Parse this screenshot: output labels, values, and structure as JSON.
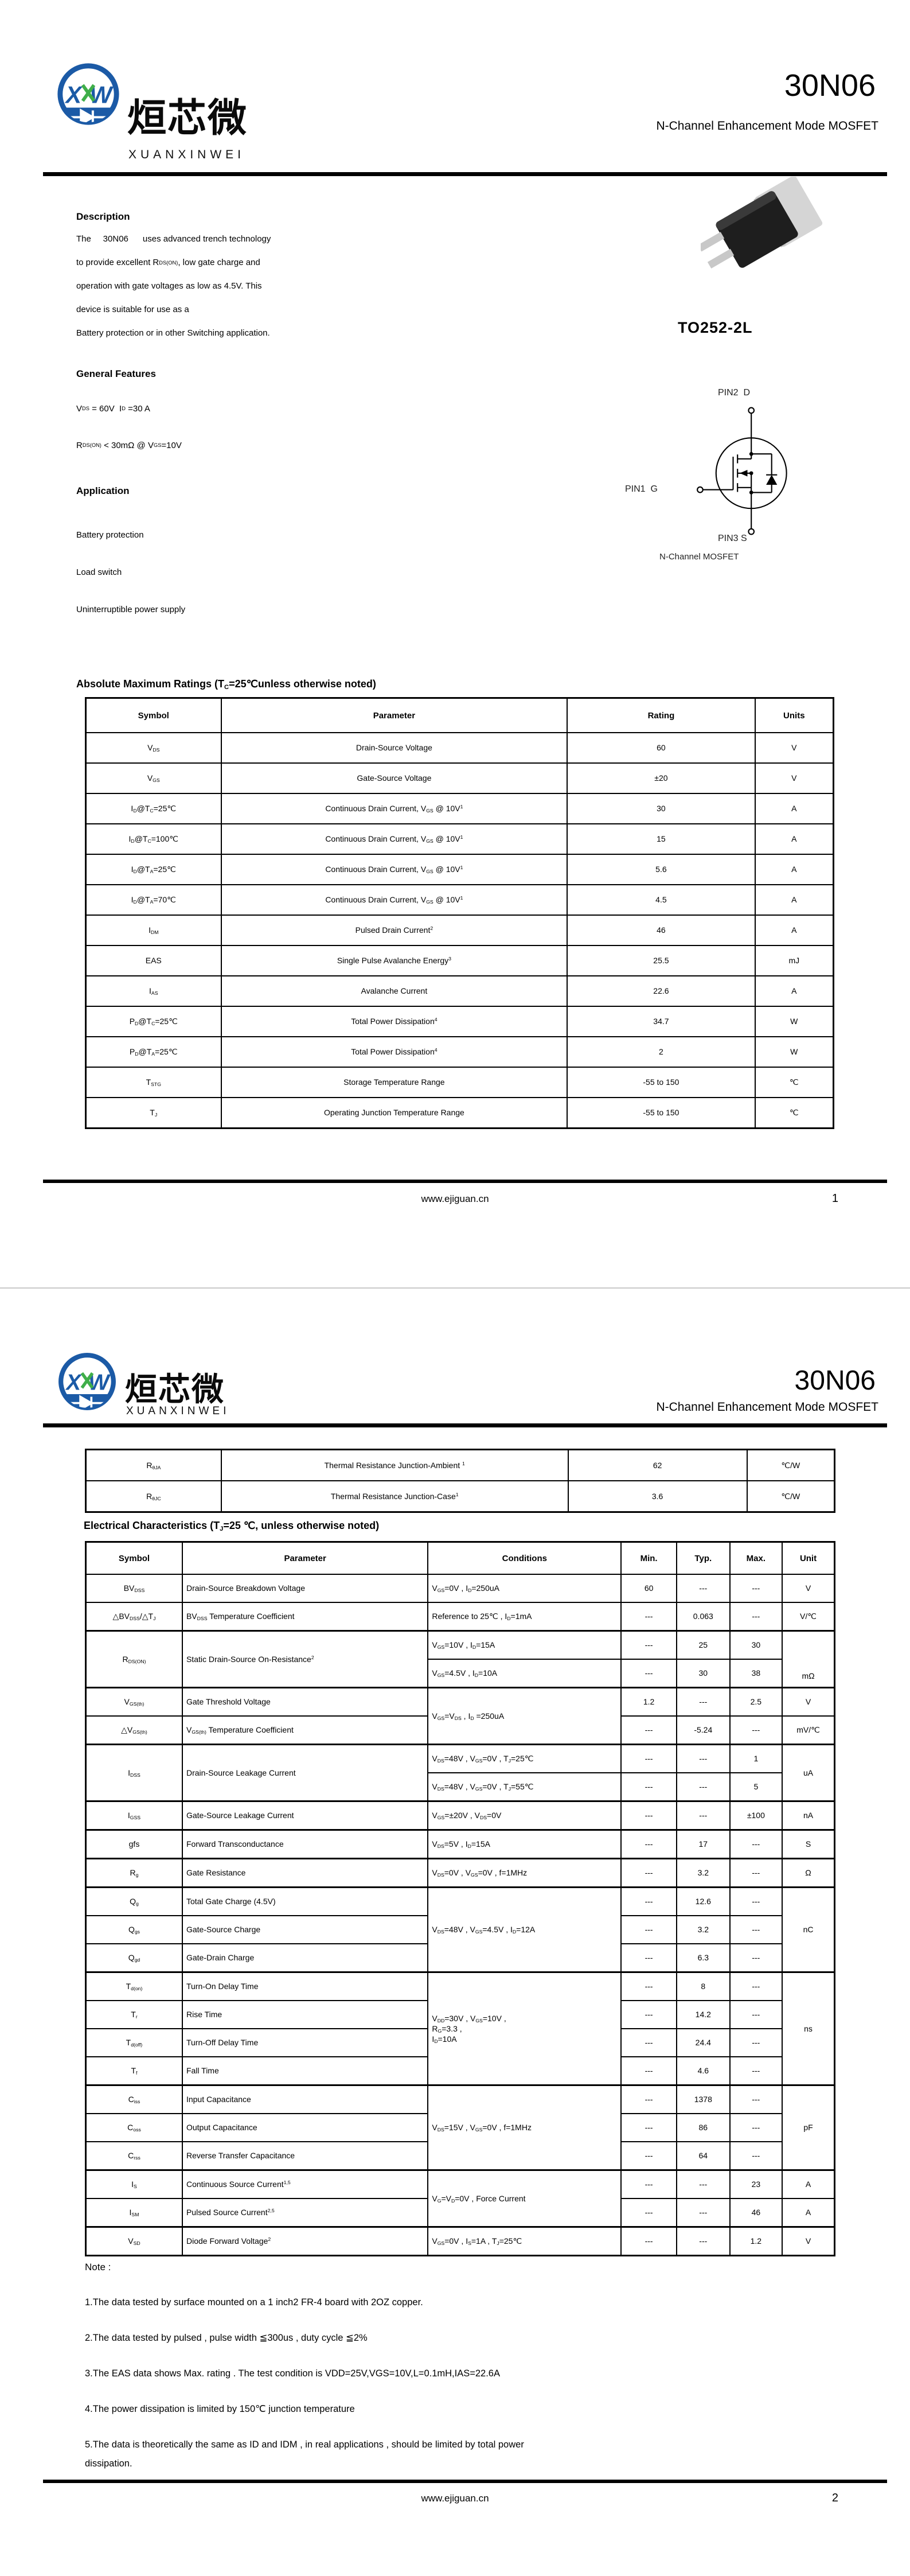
{
  "doc": {
    "brand_cn": "烜芯微",
    "brand_en": "XUANXINWEI",
    "part": "30N06",
    "subtitle": "N-Channel Enhancement Mode MOSFET",
    "site": "www.ejiguan.cn"
  },
  "page1": {
    "page_num": "1",
    "description_title": "Description",
    "description_lines": [
      "The     30N06      uses advanced trench technology",
      "to provide excellent R~DS(ON)~, low gate charge and",
      "operation with gate voltages as low as 4.5V. This",
      "device is suitable for use as a",
      "Battery protection or in other Switching application."
    ],
    "features_title": "General Features",
    "features_lines": [
      "V~DS~ = 60V  I~D~ =30 A",
      "R~DS(ON)~ < 30mΩ @ V~GS~=10V"
    ],
    "application_title": "Application",
    "application_items": [
      "Battery protection",
      "Load switch",
      "Uninterruptible power supply"
    ],
    "package_label": "TO252-2L",
    "pin2": "PIN2  D",
    "pin1": "PIN1  G",
    "pin3": "PIN3 S",
    "symbol_caption": "N-Channel MOSFET",
    "abs_title": "Absolute Maximum Ratings (T~C~=25℃unless otherwise noted)",
    "abs_table": {
      "widths": [
        18.1,
        46.3,
        25.1,
        10.5
      ],
      "headers": [
        "Symbol",
        "Parameter",
        "Rating",
        "Units"
      ],
      "rows": [
        [
          "V~DS~",
          "Drain-Source Voltage",
          "60",
          "V"
        ],
        [
          "V~GS~",
          "Gate-Source Voltage",
          "±20",
          "V"
        ],
        [
          "I~D~@T~C~=25℃",
          "Continuous Drain Current, V~GS~ @ 10V^1^",
          "30",
          "A"
        ],
        [
          "I~D~@T~C~=100℃",
          "Continuous Drain Current, V~GS~ @ 10V^1^",
          "15",
          "A"
        ],
        [
          "I~D~@T~A~=25℃",
          "Continuous Drain Current, V~GS~ @ 10V^1^",
          "5.6",
          "A"
        ],
        [
          "I~D~@T~A~=70℃",
          "Continuous Drain Current, V~GS~ @ 10V^1^",
          "4.5",
          "A"
        ],
        [
          "I~DM~",
          "Pulsed Drain Current^2^",
          "46",
          "A"
        ],
        [
          "EAS",
          "Single Pulse Avalanche Energy^3^",
          "25.5",
          "mJ"
        ],
        [
          "I~AS~",
          "Avalanche Current",
          "22.6",
          "A"
        ],
        [
          "P~D~@T~C~=25℃",
          "Total Power Dissipation^4^",
          "34.7",
          "W"
        ],
        [
          "P~D~@T~A~=25℃",
          "Total Power Dissipation^4^",
          "2",
          "W"
        ],
        [
          "T~STG~",
          "Storage Temperature Range",
          "-55 to 150",
          "℃"
        ],
        [
          "T~J~",
          "Operating Junction Temperature Range",
          "-55 to 150",
          "℃"
        ]
      ]
    }
  },
  "page2": {
    "page_num": "2",
    "thermal_table": {
      "widths": [
        18.1,
        46.3,
        23.9,
        11.7
      ],
      "headers": null,
      "rows": [
        [
          "R~θJA~",
          "Thermal Resistance Junction-Ambient ^1^",
          "62",
          "℃/W"
        ],
        [
          "R~θJC~",
          "Thermal Resistance Junction-Case^1^",
          "3.6",
          "℃/W"
        ]
      ]
    },
    "ec_title": "Electrical Characteristics (T~J~=25 ℃, unless otherwise noted)",
    "ec_table": {
      "widths": [
        12.9,
        32.8,
        25.8,
        7.4,
        7.1,
        7.0,
        7.0
      ],
      "headers": [
        "Symbol",
        "Parameter",
        "Conditions",
        "Min.",
        "Typ.",
        "Max.",
        "Unit"
      ],
      "rows": [
        [
          "BV~DSS~",
          {
            "t": "Drain-Source Breakdown Voltage",
            "c": "l"
          },
          {
            "t": "V~GS~=0V , I~D~=250uA",
            "c": "l"
          },
          "60",
          "---",
          "---",
          "V"
        ],
        [
          "△BV~DSS~/△T~J~",
          {
            "t": "BV~DSS~ Temperature Coefficient",
            "c": "l"
          },
          {
            "t": "Reference to 25℃ , I~D~=1mA",
            "c": "l"
          },
          "---",
          "0.063",
          "---",
          "V/℃"
        ],
        {
          "c": "grp",
          "cells": [
            {
              "t": "R~DS(ON)~",
              "rs": 2
            },
            {
              "t": "Static Drain-Source On-Resistance^2^",
              "c": "l",
              "rs": 2
            },
            {
              "t": "V~GS~=10V , I~D~=15A",
              "c": "l"
            },
            "---",
            "25",
            "30",
            {
              "t": "mΩ",
              "rs": 2,
              "c": "vb"
            }
          ]
        },
        [
          {
            "t": "V~GS~=4.5V , I~D~=10A",
            "c": "l"
          },
          "---",
          "30",
          "38"
        ],
        {
          "c": "grp",
          "cells": [
            "V~GS(th)~",
            {
              "t": "Gate Threshold Voltage",
              "c": "l"
            },
            {
              "t": "V~GS~=V~DS~ , I~D~ =250uA",
              "c": "l",
              "rs": 2
            },
            "1.2",
            "---",
            "2.5",
            "V"
          ]
        },
        [
          "△V~GS(th)~",
          {
            "t": "V~GS(th)~ Temperature Coefficient",
            "c": "l"
          },
          "---",
          "-5.24",
          "---",
          "mV/℃"
        ],
        {
          "c": "grp",
          "cells": [
            {
              "t": "I~DSS~",
              "rs": 2
            },
            {
              "t": "Drain-Source Leakage Current",
              "c": "l",
              "rs": 2
            },
            {
              "t": "V~DS~=48V , V~GS~=0V , T~J~=25℃",
              "c": "l"
            },
            "---",
            "---",
            "1",
            {
              "t": "uA",
              "rs": 2
            }
          ]
        },
        [
          {
            "t": "V~DS~=48V , V~GS~=0V , T~J~=55℃",
            "c": "l"
          },
          "---",
          "---",
          "5"
        ],
        {
          "c": "grp",
          "cells": [
            "I~GSS~",
            {
              "t": "Gate-Source Leakage Current",
              "c": "l"
            },
            {
              "t": "V~GS~=±20V , V~DS~=0V",
              "c": "l"
            },
            "---",
            "---",
            "±100",
            "nA"
          ]
        },
        {
          "c": "grp",
          "cells": [
            "gfs",
            {
              "t": "Forward Transconductance",
              "c": "l"
            },
            {
              "t": "V~DS~=5V , I~D~=15A",
              "c": "l"
            },
            "---",
            "17",
            "---",
            "S"
          ]
        },
        {
          "c": "grp",
          "cells": [
            "R~g~",
            {
              "t": "Gate Resistance",
              "c": "l"
            },
            {
              "t": "V~DS~=0V , V~GS~=0V , f=1MHz",
              "c": "l"
            },
            "---",
            "3.2",
            "---",
            "Ω"
          ]
        },
        {
          "c": "grp",
          "cells": [
            "Q~g~",
            {
              "t": "Total Gate Charge (4.5V)",
              "c": "l"
            },
            {
              "t": "V~DS~=48V , V~GS~=4.5V , I~D~=12A",
              "c": "l",
              "rs": 3
            },
            "---",
            "12.6",
            "---",
            {
              "t": "nC",
              "rs": 3
            }
          ]
        },
        [
          "Q~gs~",
          {
            "t": "Gate-Source Charge",
            "c": "l"
          },
          "---",
          "3.2",
          "---"
        ],
        [
          "Q~gd~",
          {
            "t": "Gate-Drain Charge",
            "c": "l"
          },
          "---",
          "6.3",
          "---"
        ],
        {
          "c": "grp",
          "cells": [
            "T~d(on)~",
            {
              "t": "Turn-On Delay Time",
              "c": "l"
            },
            {
              "t": "V~DD~=30V , V~GS~=10V ,\nR~G~=3.3  ,\nI~D~=10A",
              "c": "l",
              "rs": 4
            },
            "---",
            "8",
            "---",
            {
              "t": "ns",
              "rs": 4
            }
          ]
        },
        [
          "T~r~",
          {
            "t": "Rise Time",
            "c": "l"
          },
          "---",
          "14.2",
          "---"
        ],
        [
          "T~d(off)~",
          {
            "t": "Turn-Off Delay Time",
            "c": "l"
          },
          "---",
          "24.4",
          "---"
        ],
        [
          "T~f~",
          {
            "t": "Fall Time",
            "c": "l"
          },
          "---",
          "4.6",
          "---"
        ],
        {
          "c": "grp",
          "cells": [
            "C~iss~",
            {
              "t": "Input Capacitance",
              "c": "l"
            },
            {
              "t": "V~DS~=15V , V~GS~=0V , f=1MHz",
              "c": "l",
              "rs": 3
            },
            "---",
            "1378",
            "---",
            {
              "t": "pF",
              "rs": 3
            }
          ]
        },
        [
          "C~oss~",
          {
            "t": "Output Capacitance",
            "c": "l"
          },
          "---",
          "86",
          "---"
        ],
        [
          "C~rss~",
          {
            "t": "Reverse Transfer Capacitance",
            "c": "l"
          },
          "---",
          "64",
          "---"
        ],
        {
          "c": "grp",
          "cells": [
            "I~S~",
            {
              "t": "Continuous Source Current^1,5^",
              "c": "l"
            },
            {
              "t": "V~G~=V~D~=0V , Force Current",
              "c": "l",
              "rs": 2
            },
            "---",
            "---",
            "23",
            "A"
          ]
        },
        [
          "I~SM~",
          {
            "t": "Pulsed Source Current^2,5^",
            "c": "l"
          },
          "---",
          "---",
          "46",
          "A"
        ],
        {
          "c": "grp",
          "cells": [
            "V~SD~",
            {
              "t": "Diode Forward Voltage^2^",
              "c": "l"
            },
            {
              "t": "V~GS~=0V , I~S~=1A , T~J~=25℃",
              "c": "l"
            },
            "---",
            "---",
            "1.2",
            "V"
          ]
        }
      ]
    },
    "note_title": "Note :",
    "notes": [
      "1.The data tested by surface mounted on a 1 inch2 FR-4 board with 2OZ copper.",
      "2.The data tested by pulsed , pulse width ≦300us , duty cycle ≦2%",
      "3.The EAS data shows Max. rating . The test condition is VDD=25V,VGS=10V,L=0.1mH,IAS=22.6A",
      "4.The power dissipation is limited by 150℃ junction temperature",
      "5.The data is theoretically the same as ID and IDM , in real applications , should be limited by total power\ndissipation."
    ]
  }
}
